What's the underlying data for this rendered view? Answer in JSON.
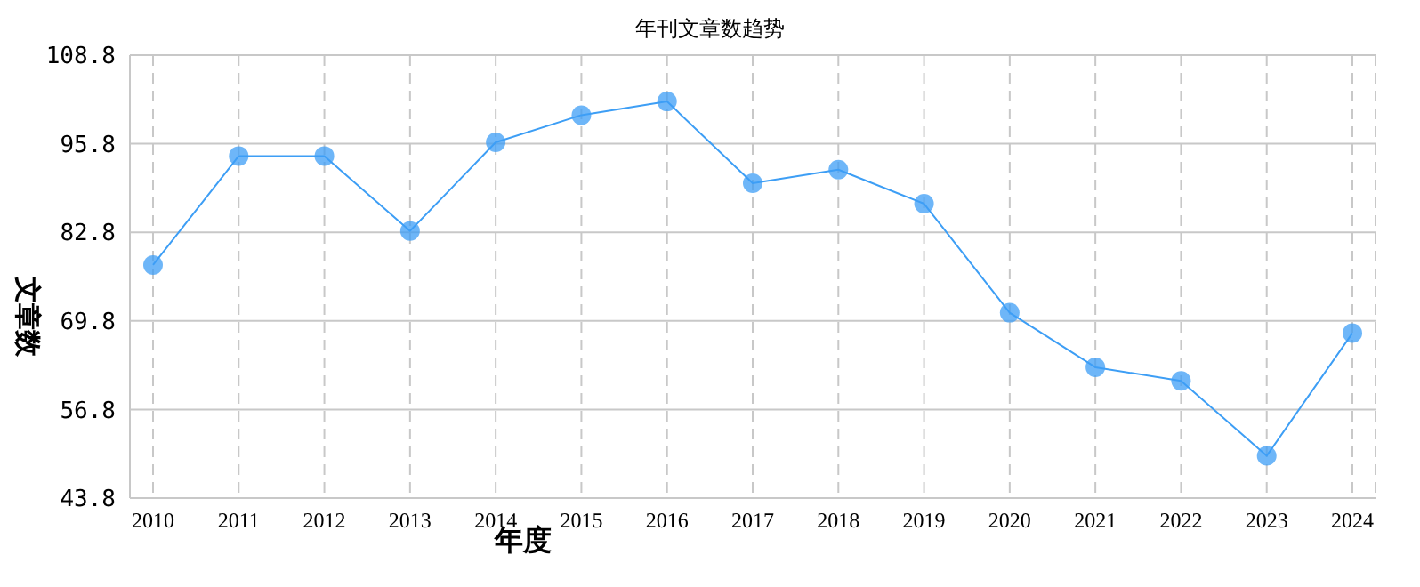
{
  "chart_data": {
    "type": "line",
    "title": "年刊文章数趋势",
    "xlabel": "年度",
    "ylabel": "文章数",
    "categories": [
      "2010",
      "2011",
      "2012",
      "2013",
      "2014",
      "2015",
      "2016",
      "2017",
      "2018",
      "2019",
      "2020",
      "2021",
      "2022",
      "2023",
      "2024"
    ],
    "series": [
      {
        "color": "#3d9ef5",
        "values": [
          78,
          94,
          94,
          83,
          96,
          100,
          102,
          90,
          92,
          87,
          71,
          63,
          61,
          50,
          68
        ]
      }
    ],
    "ylim": [
      43.8,
      108.8
    ],
    "yticks": [
      43.8,
      56.8,
      69.8,
      82.8,
      95.8,
      108.8
    ],
    "grid": true,
    "legend": false,
    "marker": "circle",
    "line_style": "solid"
  }
}
